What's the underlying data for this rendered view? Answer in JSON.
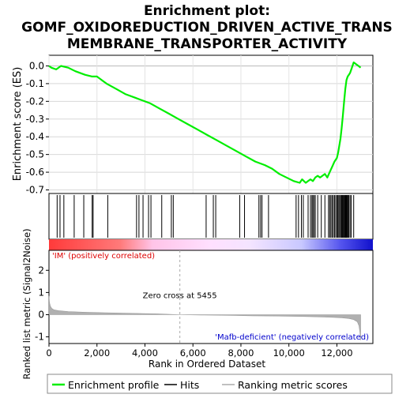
{
  "chart_data": {
    "type": "line",
    "title_lines": [
      "Enrichment plot:",
      "GOMF_OXIDOREDUCTION_DRIVEN_ACTIVE_TRANS",
      "MEMBRANE_TRANSPORTER_ACTIVITY"
    ],
    "colors": {
      "es_line": "#00ee00",
      "hits": "#000000",
      "metric": "#b0b0b0",
      "positive_label": "#dd0000",
      "negative_label": "#0000cc",
      "zero_cross_line": "#aaaaaa"
    },
    "top_panel": {
      "ylabel": "Enrichment score (ES)",
      "ylim": [
        -0.72,
        0.06
      ],
      "yticks": [
        0.0,
        -0.1,
        -0.2,
        -0.3,
        -0.4,
        -0.5,
        -0.6,
        -0.7
      ],
      "ytick_labels": [
        "0.0",
        "-0.1",
        "-0.2",
        "-0.3",
        "-0.4",
        "-0.5",
        "-0.6",
        "-0.7"
      ],
      "grid": true
    },
    "es_profile": {
      "x": [
        0,
        100,
        300,
        400,
        500,
        800,
        1100,
        1500,
        1800,
        2000,
        2400,
        2800,
        3200,
        3600,
        3800,
        4200,
        4600,
        5000,
        5400,
        5800,
        6200,
        6600,
        7000,
        7400,
        7800,
        8200,
        8600,
        9000,
        9300,
        9600,
        9900,
        10200,
        10450,
        10550,
        10700,
        10800,
        10900,
        11000,
        11100,
        11200,
        11300,
        11500,
        11600,
        11700,
        11800,
        11900,
        12000,
        12050,
        12100,
        12150,
        12200,
        12250,
        12300,
        12350,
        12400,
        12450,
        12500,
        12550,
        12600,
        12700,
        12800,
        12900,
        12990
      ],
      "y": [
        0.0,
        -0.01,
        -0.02,
        -0.01,
        0.0,
        -0.01,
        -0.03,
        -0.05,
        -0.06,
        -0.06,
        -0.1,
        -0.13,
        -0.16,
        -0.18,
        -0.19,
        -0.21,
        -0.24,
        -0.27,
        -0.3,
        -0.33,
        -0.36,
        -0.39,
        -0.42,
        -0.45,
        -0.48,
        -0.51,
        -0.54,
        -0.56,
        -0.58,
        -0.61,
        -0.63,
        -0.65,
        -0.66,
        -0.64,
        -0.66,
        -0.65,
        -0.64,
        -0.65,
        -0.63,
        -0.62,
        -0.63,
        -0.61,
        -0.63,
        -0.6,
        -0.57,
        -0.54,
        -0.52,
        -0.49,
        -0.45,
        -0.41,
        -0.35,
        -0.28,
        -0.2,
        -0.13,
        -0.08,
        -0.06,
        -0.05,
        -0.04,
        -0.02,
        0.02,
        0.01,
        0.0,
        -0.01
      ]
    },
    "hits": [
      340,
      460,
      620,
      1050,
      1450,
      1800,
      1840,
      2450,
      3650,
      3750,
      3920,
      4150,
      4250,
      4700,
      5100,
      5180,
      6550,
      6850,
      6950,
      7950,
      8150,
      8750,
      8820,
      8880,
      9150,
      10300,
      10400,
      10520,
      10600,
      10800,
      10900,
      10960,
      11000,
      11050,
      11100,
      11200,
      11350,
      11500,
      11650,
      11700,
      11750,
      11800,
      11850,
      11900,
      11950,
      12000,
      12040,
      12080,
      12120,
      12160,
      12200,
      12230,
      12260,
      12290,
      12320,
      12350,
      12380,
      12410,
      12440,
      12470,
      12500,
      12550,
      12600,
      12700
    ],
    "bottom_panel": {
      "ylabel": "Ranked list metric (Signal2Noise)",
      "xlabel": "Rank in Ordered Dataset",
      "ylim": [
        -1.3,
        2.9
      ],
      "yticks": [
        2,
        1,
        0,
        -1
      ],
      "ytick_labels": [
        "2",
        "1",
        "0",
        "-1"
      ],
      "xlim": [
        0,
        13500
      ],
      "xticks": [
        0,
        2000,
        4000,
        6000,
        8000,
        10000,
        12000
      ],
      "xtick_labels": [
        "0",
        "2,000",
        "4,000",
        "6,000",
        "8,000",
        "10,000",
        "12,000"
      ],
      "zero_cross_rank": 5455,
      "zero_cross_label": "Zero cross at 5455",
      "positive_label": "'IM' (positively correlated)",
      "negative_label": "'Mafb-deficient' (negatively correlated)"
    },
    "metric_profile": {
      "x": [
        0,
        20,
        60,
        120,
        200,
        400,
        800,
        1500,
        2500,
        3500,
        4500,
        5455,
        6500,
        7500,
        8500,
        9500,
        10500,
        11300,
        11800,
        12200,
        12500,
        12700,
        12850,
        12920,
        12960,
        12990
      ],
      "y": [
        0.85,
        0.55,
        0.38,
        0.28,
        0.22,
        0.18,
        0.14,
        0.11,
        0.08,
        0.06,
        0.04,
        0.0,
        -0.02,
        -0.03,
        -0.05,
        -0.06,
        -0.08,
        -0.1,
        -0.12,
        -0.14,
        -0.17,
        -0.22,
        -0.32,
        -0.5,
        -0.8,
        -1.15
      ]
    },
    "legend": {
      "items": [
        "Enrichment profile",
        "Hits",
        "Ranking metric scores"
      ]
    }
  }
}
